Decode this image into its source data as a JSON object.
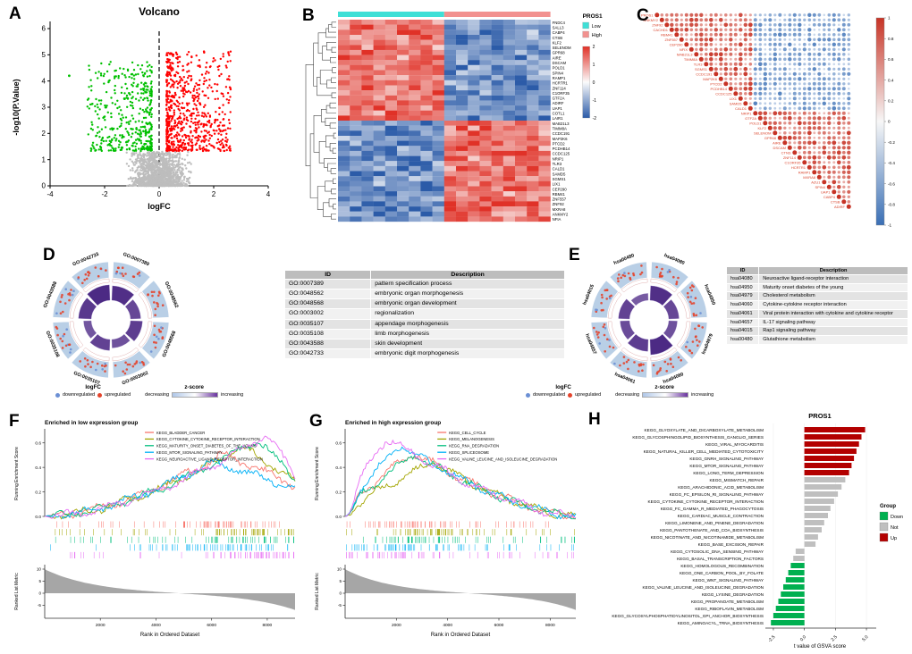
{
  "figure": {
    "background": "#ffffff"
  },
  "panels": {
    "A": {
      "label": "A"
    },
    "B": {
      "label": "B"
    },
    "C": {
      "label": "C"
    },
    "D": {
      "label": "D"
    },
    "E": {
      "label": "E"
    },
    "F": {
      "label": "F"
    },
    "G": {
      "label": "G"
    },
    "H": {
      "label": "H"
    }
  },
  "go_legend": {
    "logfc_title": "logFC",
    "down_label": "downregulated",
    "up_label": "upregulated",
    "down_color": "#6B8FD4",
    "up_color": "#E4442C",
    "zscore_title": "z-score",
    "z_left": "decreasing",
    "z_right": "increasing"
  },
  "chart_data": [
    {
      "panel": "A",
      "type": "scatter",
      "title": "Volcano",
      "xlabel": "logFC",
      "ylabel": "-log10(P.Value)",
      "xlim": [
        -4,
        4
      ],
      "ylim": [
        0,
        6
      ],
      "xticks": [
        -4,
        -2,
        0,
        2,
        4
      ],
      "yticks": [
        0,
        1,
        2,
        3,
        4,
        5,
        6
      ],
      "vline_x": 0,
      "sig_threshold_y": 1.3,
      "groups": [
        {
          "name": "upregulated",
          "color": "#FF0000",
          "n": 700,
          "logFC_range": [
            0.25,
            2.6
          ],
          "neglogp_range": [
            1.35,
            5.2
          ]
        },
        {
          "name": "downregulated",
          "color": "#00C000",
          "n": 430,
          "logFC_range": [
            -2.7,
            -0.25
          ],
          "neglogp_range": [
            1.35,
            4.8
          ]
        },
        {
          "name": "not-significant",
          "color": "#BDBDBD",
          "n": 1500,
          "logFC_range": [
            -1.6,
            1.6
          ],
          "neglogp_range": [
            0,
            1.3
          ]
        }
      ],
      "outliers": [
        {
          "x": -3.3,
          "y": 4.2,
          "group": "downregulated"
        }
      ]
    },
    {
      "panel": "B",
      "type": "heatmap",
      "column_annotation": {
        "title": "PROS1",
        "groups": [
          {
            "label": "Low",
            "color": "#3FDFD6",
            "n_columns": 9
          },
          {
            "label": "High",
            "color": "#F2918F",
            "n_columns": 9
          }
        ]
      },
      "color_scale": {
        "max_color": "#E03127",
        "mid_color": "#FBFBFB",
        "min_color": "#2B5BA8",
        "ticks": [
          2,
          1,
          0,
          -1,
          -2
        ]
      },
      "n_rows_up_in_low": 20,
      "genes": [
        "FNDC4",
        "SALL3",
        "CABP4",
        "CTSB",
        "KLF2",
        "SELENOM",
        "GPR68",
        "AIRE",
        "DSCAM",
        "POLD1",
        "SPIN4",
        "RAMP1",
        "HCRTR1",
        "ZNF114",
        "C1ORF35",
        "GTF2A",
        "ADIRF",
        "UAP1",
        "COTL1",
        "LAIR1",
        "MAB21L3",
        "TIMM8A",
        "CCDC191",
        "MAP2K6",
        "PTCD2",
        "PCDHB14",
        "CCDC125",
        "NRIP1",
        "TLR3",
        "CALD1",
        "SAMD5",
        "SGMS1",
        "LIX1",
        "CEP290",
        "RBM41",
        "ZNF557",
        "ZNF92",
        "MXRA8",
        "ANKMY2",
        "NFIA"
      ]
    },
    {
      "panel": "C",
      "type": "correlation-heatmap",
      "genes": [
        "PROS1",
        "ANKMY2",
        "ZNF92",
        "CACHD1",
        "RBM41",
        "ZNF557",
        "CEP290",
        "NFIX",
        "MAB21L3",
        "TIMM8A",
        "TLR3",
        "SGMS1",
        "CCDC191",
        "MAP2K6",
        "PTCD2",
        "PCDHB14",
        "CCDC125",
        "LIX1",
        "SAMD5",
        "CALD1",
        "NRIP1",
        "GTF2A",
        "POLD1",
        "KLF2",
        "SELENOM",
        "GPR68",
        "AIRE",
        "DSCAM",
        "CTNS",
        "ZNF114",
        "C1ORF35",
        "HCRTR1",
        "RAMP1",
        "MXRA8",
        "AZU1",
        "SPIN4",
        "UAP1",
        "CABP4",
        "CTSB",
        "ADIRF"
      ],
      "n_cluster1": 20,
      "positive_color": "#C73325",
      "negative_color": "#3A6FB5",
      "label_color": "#D9442C",
      "colorbar_ticks": [
        1,
        0.8,
        0.6,
        0.4,
        0.2,
        0,
        -0.2,
        -0.4,
        -0.6,
        -0.8,
        -1
      ]
    },
    {
      "panel": "D",
      "type": "go-circle",
      "table_headers": [
        "ID",
        "Description"
      ],
      "terms": [
        {
          "id": "GO:0007389",
          "description": "pattern specification process",
          "zscore": 0.85
        },
        {
          "id": "GO:0048562",
          "description": "embryonic organ morphogenesis",
          "zscore": 0.6
        },
        {
          "id": "GO:0048568",
          "description": "embryonic organ development",
          "zscore": 0.7
        },
        {
          "id": "GO:0003002",
          "description": "regionalization",
          "zscore": 0.5
        },
        {
          "id": "GO:0035107",
          "description": "appendage morphogenesis",
          "zscore": 0.65
        },
        {
          "id": "GO:0035108",
          "description": "limb morphogenesis",
          "zscore": 0.45
        },
        {
          "id": "GO:0043588",
          "description": "skin development",
          "zscore": 0.75
        },
        {
          "id": "GO:0042733",
          "description": "embryonic digit morphogenesis",
          "zscore": 0.9
        }
      ]
    },
    {
      "panel": "E",
      "type": "kegg-circle",
      "table_headers": [
        "ID",
        "Description"
      ],
      "terms": [
        {
          "id": "hsa04080",
          "description": "Neuroactive ligand-receptor interaction",
          "zscore": 0.85
        },
        {
          "id": "hsa04950",
          "description": "Maturity onset diabetes of the young",
          "zscore": 0.6
        },
        {
          "id": "hsa04979",
          "description": "Cholesterol metabolism",
          "zscore": 0.5
        },
        {
          "id": "hsa04060",
          "description": "Cytokine-cytokine receptor interaction",
          "zscore": 0.9
        },
        {
          "id": "hsa04061",
          "description": "Viral protein interaction with cytokine and cytokine receptor",
          "zscore": 0.7
        },
        {
          "id": "hsa04657",
          "description": "IL-17 signaling pathway",
          "zscore": 0.55
        },
        {
          "id": "hsa04015",
          "description": "Rap1 signaling pathway",
          "zscore": 0.65
        },
        {
          "id": "hsa00480",
          "description": "Glutathione metabolism",
          "zscore": 0.4
        }
      ]
    },
    {
      "panel": "F",
      "type": "gsea",
      "title": "Enriched in low expression group",
      "ylabel_top": "Running Enrichment Score",
      "ylabel_bottom": "Ranked List Metric",
      "xlabel": "Rank in Ordered Dataset",
      "xticks": [
        2000,
        4000,
        6000,
        8000
      ],
      "x_max": 9000,
      "es_ticks": [
        0.0,
        0.2,
        0.4,
        0.6
      ],
      "metric_ticks": [
        10,
        5,
        0,
        -5
      ],
      "shape": "late",
      "series": [
        {
          "name": "KEGG_BLADDER_CANCER",
          "color": "#F8766D",
          "peak_x": 0.7,
          "peak_es": 0.5
        },
        {
          "name": "KEGG_CYTOKINE_CYTOKINE_RECEPTOR_INTERACTION",
          "color": "#A3A500",
          "peak_x": 0.78,
          "peak_es": 0.56
        },
        {
          "name": "KEGG_MATURITY_ONSET_DIABETES_OF_THE_YOUNG",
          "color": "#00BF7D",
          "peak_x": 0.84,
          "peak_es": 0.62
        },
        {
          "name": "KEGG_MTOR_SIGNALING_PATHWAY",
          "color": "#00B0F6",
          "peak_x": 0.66,
          "peak_es": 0.44
        },
        {
          "name": "KEGG_NEUROACTIVE_LIGAND_RECEPTOR_INTERACTION",
          "color": "#E76BF3",
          "peak_x": 0.88,
          "peak_es": 0.66
        }
      ]
    },
    {
      "panel": "G",
      "type": "gsea",
      "title": "Enriched in high expression group",
      "ylabel_top": "Running Enrichment Score",
      "ylabel_bottom": "Ranked List Metric",
      "xlabel": "Rank in Ordered Dataset",
      "xticks": [
        2000,
        4000,
        6000,
        8000
      ],
      "x_max": 9000,
      "es_ticks": [
        0.0,
        0.2,
        0.4,
        0.6
      ],
      "metric_ticks": [
        10,
        5,
        0,
        -5
      ],
      "shape": "early",
      "series": [
        {
          "name": "KEGG_CELL_CYCLE",
          "color": "#F8766D",
          "peak_x": 0.3,
          "peak_es": 0.52
        },
        {
          "name": "KEGG_MELANOGENESIS",
          "color": "#A3A500",
          "peak_x": 0.38,
          "peak_es": 0.44
        },
        {
          "name": "KEGG_RNA_DEGRADATION",
          "color": "#00BF7D",
          "peak_x": 0.3,
          "peak_es": 0.5
        },
        {
          "name": "KEGG_SPLICEOSOME",
          "color": "#00B0F6",
          "peak_x": 0.24,
          "peak_es": 0.58
        },
        {
          "name": "KEGG_VALINE_LEUCINE_AND_ISOLEUCINE_DEGRADATION",
          "color": "#E76BF3",
          "peak_x": 0.18,
          "peak_es": 0.64
        }
      ]
    },
    {
      "panel": "H",
      "type": "bar",
      "title": "PROS1",
      "xlabel": "t value of GSVA score",
      "xticks": [
        -2.5,
        0.0,
        2.5,
        5.0
      ],
      "xlim": [
        -3.0,
        5.5
      ],
      "legend_title": "Group",
      "legend_order": [
        "Down",
        "Not",
        "Up"
      ],
      "group_colors": {
        "Down": "#00B050",
        "Not": "#BFBFBF",
        "Up": "#B30000"
      },
      "bars": [
        {
          "pathway": "KEGG_GLYOXYLATE_AND_DICARBOXYLATE_METABOLISM",
          "t": 4.9,
          "group": "Up"
        },
        {
          "pathway": "KEGG_GLYCOSPHINGOLIPID_BIOSYNTHESIS_GANGLIO_SERIES",
          "t": 4.6,
          "group": "Up"
        },
        {
          "pathway": "KEGG_VIRAL_MYOCARDITIS",
          "t": 4.4,
          "group": "Up"
        },
        {
          "pathway": "KEGG_NATURAL_KILLER_CELL_MEDIATED_CYTOTOXICITY",
          "t": 4.2,
          "group": "Up"
        },
        {
          "pathway": "KEGG_GNRH_SIGNALING_PATHWAY",
          "t": 4.0,
          "group": "Up"
        },
        {
          "pathway": "KEGG_MTOR_SIGNALING_PATHWAY",
          "t": 3.8,
          "group": "Up"
        },
        {
          "pathway": "KEGG_LONG_TERM_DEPRESSION",
          "t": 3.6,
          "group": "Up"
        },
        {
          "pathway": "KEGG_MISMATCH_REPAIR",
          "t": 3.3,
          "group": "Not"
        },
        {
          "pathway": "KEGG_ARACHIDONIC_ACID_METABOLISM",
          "t": 3.0,
          "group": "Not"
        },
        {
          "pathway": "KEGG_FC_EPSILON_RI_SIGNALING_PATHWAY",
          "t": 2.7,
          "group": "Not"
        },
        {
          "pathway": "KEGG_CYTOKINE_CYTOKINE_RECEPTOR_INTERACTION",
          "t": 2.4,
          "group": "Not"
        },
        {
          "pathway": "KEGG_FC_GAMMA_R_MEDIATED_PHAGOCYTOSIS",
          "t": 2.1,
          "group": "Not"
        },
        {
          "pathway": "KEGG_CARDIAC_MUSCLE_CONTRACTION",
          "t": 1.9,
          "group": "Not"
        },
        {
          "pathway": "KEGG_LIMONENE_AND_PINENE_DEGRADATION",
          "t": 1.6,
          "group": "Not"
        },
        {
          "pathway": "KEGG_PANTOTHENATE_AND_COA_BIOSYNTHESIS",
          "t": 1.4,
          "group": "Not"
        },
        {
          "pathway": "KEGG_NICOTINATE_AND_NICOTINAMIDE_METABOLISM",
          "t": 1.1,
          "group": "Not"
        },
        {
          "pathway": "KEGG_BASE_EXCISION_REPAIR",
          "t": 0.9,
          "group": "Not"
        },
        {
          "pathway": "KEGG_CYTOSOLIC_DNA_SENSING_PATHWAY",
          "t": -0.7,
          "group": "Not"
        },
        {
          "pathway": "KEGG_BASAL_TRANSCRIPTION_FACTORS",
          "t": -0.9,
          "group": "Not"
        },
        {
          "pathway": "KEGG_HOMOLOGOUS_RECOMBINATION",
          "t": -1.1,
          "group": "Down"
        },
        {
          "pathway": "KEGG_ONE_CARBON_POOL_BY_FOLATE",
          "t": -1.3,
          "group": "Down"
        },
        {
          "pathway": "KEGG_WNT_SIGNALING_PATHWAY",
          "t": -1.5,
          "group": "Down"
        },
        {
          "pathway": "KEGG_VALINE_LEUCINE_AND_ISOLEUCINE_DEGRADATION",
          "t": -1.7,
          "group": "Down"
        },
        {
          "pathway": "KEGG_LYSINE_DEGRADATION",
          "t": -1.9,
          "group": "Down"
        },
        {
          "pathway": "KEGG_PROPANOATE_METABOLISM",
          "t": -2.1,
          "group": "Down"
        },
        {
          "pathway": "KEGG_RIBOFLAVIN_METABOLISM",
          "t": -2.3,
          "group": "Down"
        },
        {
          "pathway": "KEGG_GLYCOSYLPHOSPHATIDYLINOSITOL_GPI_ANCHOR_BIOSYNTHESIS",
          "t": -2.5,
          "group": "Down"
        },
        {
          "pathway": "KEGG_AMINOACYL_TRNA_BIOSYNTHESIS",
          "t": -2.7,
          "group": "Down"
        }
      ]
    }
  ]
}
